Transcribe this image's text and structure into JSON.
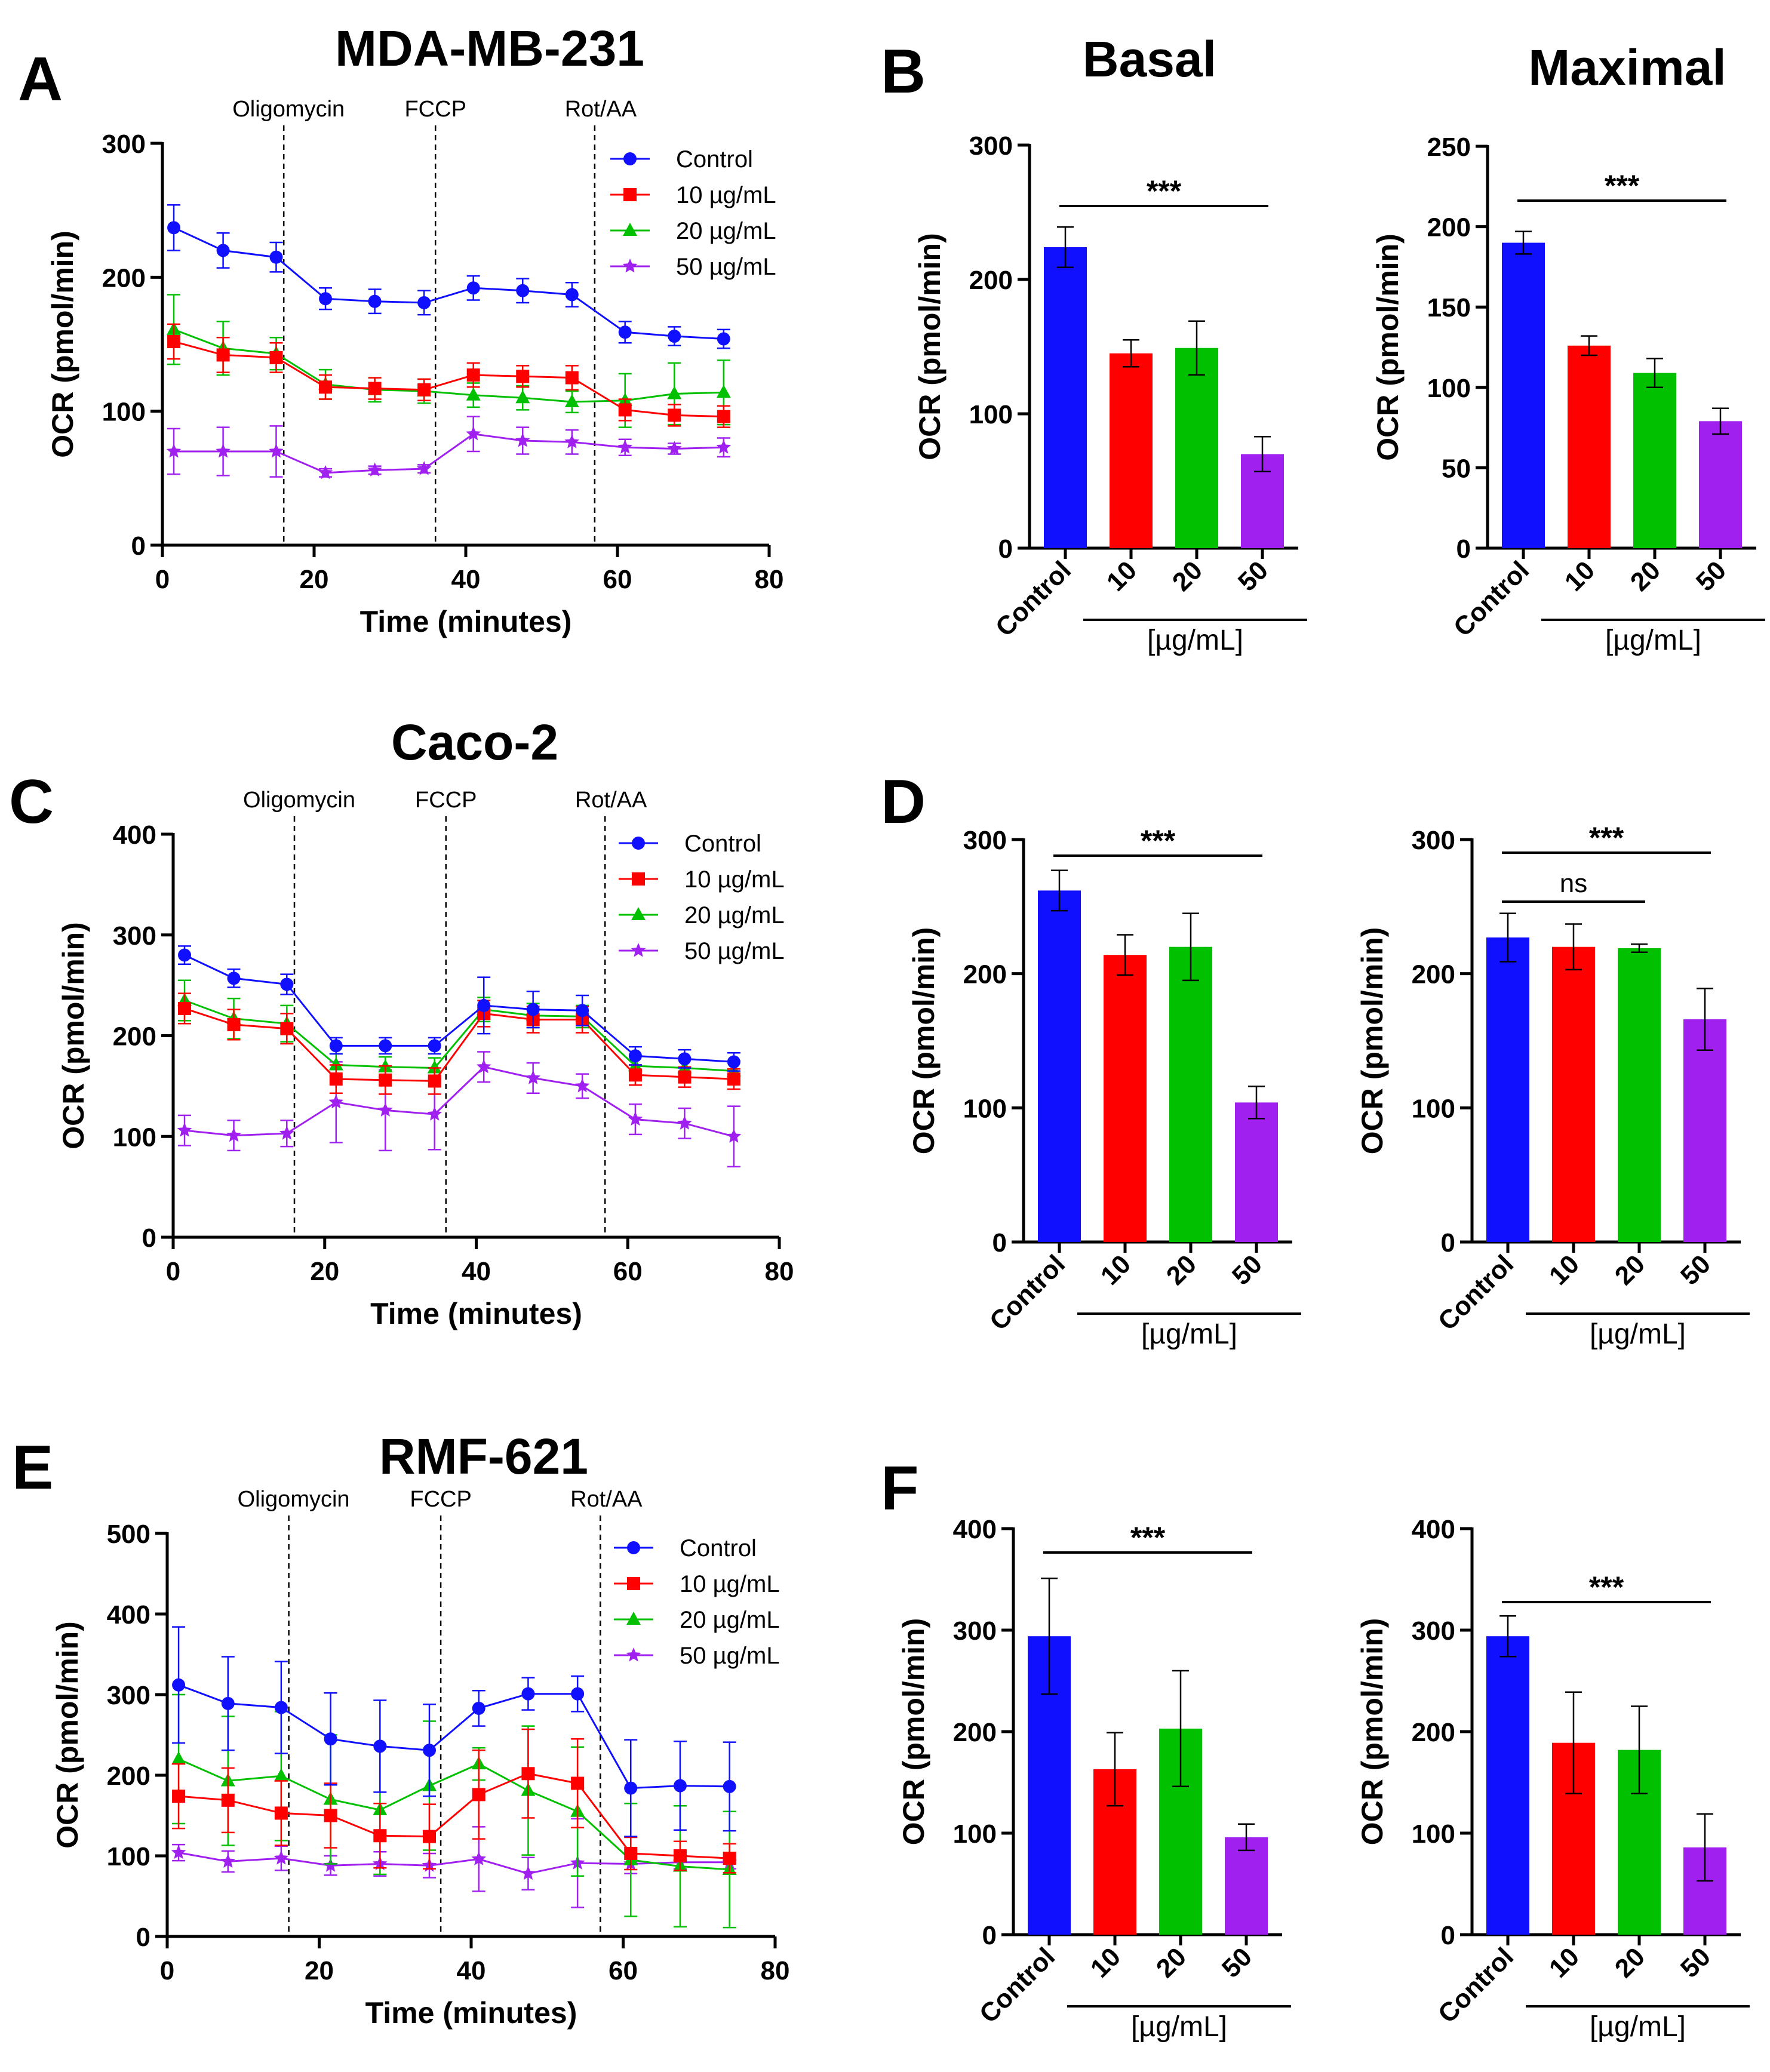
{
  "panel_labels": {
    "A": "A",
    "B": "B",
    "C": "C",
    "D": "D",
    "E": "E",
    "F": "F"
  },
  "titles": {
    "MDA": "MDA-MB-231",
    "Caco": "Caco-2",
    "RMF": "RMF-621",
    "basal": "Basal",
    "maximal": "Maximal"
  },
  "injections": [
    "Oligomycin",
    "FCCP",
    "Rot/AA"
  ],
  "legend": [
    "Control",
    "10 µg/mL",
    "20 µg/mL",
    "50 µg/mL"
  ],
  "colors": {
    "control": "#1010ff",
    "c10": "#ff0000",
    "c20": "#00c000",
    "c50": "#a020f0"
  },
  "axis_text": {
    "ocr": "OCR (pmol/min)",
    "time": "Time (minutes)",
    "unit": "[µg/mL]",
    "control": "Control",
    "d10": "10",
    "d20": "20",
    "d50": "50",
    "stars": "***",
    "ns": "ns"
  },
  "chart_data": [
    {
      "id": "A",
      "type": "line",
      "title": "MDA-MB-231",
      "xlabel": "Time (minutes)",
      "ylabel": "OCR (pmol/min)",
      "xlim": [
        0,
        80
      ],
      "ylim": [
        0,
        300
      ],
      "xticks": [
        0,
        20,
        40,
        60,
        80
      ],
      "yticks": [
        0,
        100,
        200,
        300
      ],
      "injections_at": [
        16,
        36,
        57
      ],
      "x": [
        1.5,
        8,
        15,
        21.5,
        28,
        34.5,
        41,
        47.5,
        54,
        61,
        67.5,
        74
      ],
      "series": [
        {
          "name": "Control",
          "values": [
            237,
            220,
            215,
            184,
            182,
            181,
            192,
            190,
            187,
            159,
            156,
            154
          ],
          "err": [
            17,
            13,
            11,
            8,
            9,
            9,
            9,
            9,
            9,
            8,
            7,
            7
          ]
        },
        {
          "name": "10 µg/mL",
          "values": [
            152,
            142,
            140,
            118,
            117,
            116,
            127,
            126,
            125,
            101,
            97,
            96
          ],
          "err": [
            13,
            13,
            11,
            9,
            8,
            8,
            9,
            8,
            9,
            8,
            8,
            8
          ]
        },
        {
          "name": "20 µg/mL",
          "values": [
            161,
            147,
            143,
            120,
            116,
            115,
            112,
            110,
            107,
            108,
            113,
            114
          ],
          "err": [
            26,
            20,
            12,
            11,
            9,
            9,
            9,
            9,
            8,
            20,
            23,
            24
          ]
        },
        {
          "name": "50 µg/mL",
          "values": [
            70,
            70,
            70,
            54,
            56,
            57,
            83,
            78,
            77,
            73,
            72,
            73
          ],
          "err": [
            17,
            18,
            19,
            3,
            3,
            3,
            13,
            10,
            9,
            6,
            4,
            7
          ]
        }
      ]
    },
    {
      "id": "B-basal",
      "type": "bar",
      "title": "Basal",
      "ylabel": "OCR (pmol/min)",
      "ylim": [
        0,
        300
      ],
      "yticks": [
        0,
        100,
        200,
        300
      ],
      "categories": [
        "Control",
        "10",
        "20",
        "50"
      ],
      "values": [
        224,
        145,
        149,
        70
      ],
      "err": [
        15,
        10,
        20,
        13
      ],
      "significance": [
        {
          "from": 0,
          "to": 3,
          "label": "***"
        }
      ]
    },
    {
      "id": "B-maximal",
      "type": "bar",
      "title": "Maximal",
      "ylabel": "OCR (pmol/min)",
      "ylim": [
        0,
        250
      ],
      "yticks": [
        0,
        50,
        100,
        150,
        200,
        250
      ],
      "categories": [
        "Control",
        "10",
        "20",
        "50"
      ],
      "values": [
        190,
        126,
        109,
        79
      ],
      "err": [
        7,
        6,
        9,
        8
      ],
      "significance": [
        {
          "from": 0,
          "to": 3,
          "label": "***"
        }
      ]
    },
    {
      "id": "C",
      "type": "line",
      "title": "Caco-2",
      "xlabel": "Time (minutes)",
      "ylabel": "OCR (pmol/min)",
      "xlim": [
        0,
        80
      ],
      "ylim": [
        0,
        400
      ],
      "xticks": [
        0,
        20,
        40,
        60,
        80
      ],
      "yticks": [
        0,
        100,
        200,
        300,
        400
      ],
      "injections_at": [
        16,
        36,
        57
      ],
      "x": [
        1.5,
        8,
        15,
        21.5,
        28,
        34.5,
        41,
        47.5,
        54,
        61,
        67.5,
        74
      ],
      "series": [
        {
          "name": "Control",
          "values": [
            280,
            257,
            251,
            190,
            190,
            190,
            230,
            226,
            225,
            180,
            177,
            174
          ],
          "err": [
            9,
            9,
            10,
            8,
            8,
            8,
            28,
            18,
            15,
            9,
            9,
            9
          ]
        },
        {
          "name": "10 µg/mL",
          "values": [
            227,
            211,
            207,
            157,
            156,
            155,
            222,
            216,
            216,
            161,
            159,
            157
          ],
          "err": [
            15,
            15,
            15,
            14,
            14,
            13,
            13,
            13,
            13,
            10,
            10,
            10
          ]
        },
        {
          "name": "20 µg/mL",
          "values": [
            235,
            217,
            212,
            171,
            169,
            168,
            226,
            220,
            219,
            170,
            168,
            165
          ],
          "err": [
            20,
            20,
            18,
            11,
            10,
            10,
            12,
            12,
            11,
            10,
            10,
            10
          ]
        },
        {
          "name": "50 µg/mL",
          "values": [
            106,
            101,
            103,
            134,
            126,
            122,
            169,
            158,
            150,
            117,
            113,
            100
          ],
          "err": [
            15,
            15,
            13,
            40,
            40,
            35,
            15,
            15,
            12,
            15,
            15,
            30
          ]
        }
      ]
    },
    {
      "id": "D-basal",
      "type": "bar",
      "ylabel": "OCR (pmol/min)",
      "ylim": [
        0,
        300
      ],
      "yticks": [
        0,
        100,
        200,
        300
      ],
      "categories": [
        "Control",
        "10",
        "20",
        "50"
      ],
      "values": [
        262,
        214,
        220,
        104
      ],
      "err": [
        15,
        15,
        25,
        12
      ],
      "significance": [
        {
          "from": 0,
          "to": 3,
          "label": "***"
        }
      ]
    },
    {
      "id": "D-maximal",
      "type": "bar",
      "ylabel": "OCR (pmol/min)",
      "ylim": [
        0,
        300
      ],
      "yticks": [
        0,
        100,
        200,
        300
      ],
      "categories": [
        "Control",
        "10",
        "20",
        "50"
      ],
      "values": [
        227,
        220,
        219,
        166
      ],
      "err": [
        18,
        17,
        3,
        23
      ],
      "significance": [
        {
          "from": 0,
          "to": 3,
          "label": "***"
        },
        {
          "from": 0,
          "to": 2,
          "label": "ns"
        }
      ]
    },
    {
      "id": "E",
      "type": "line",
      "title": "RMF-621",
      "xlabel": "Time (minutes)",
      "ylabel": "OCR (pmol/min)",
      "xlim": [
        0,
        80
      ],
      "ylim": [
        0,
        500
      ],
      "xticks": [
        0,
        20,
        40,
        60,
        80
      ],
      "yticks": [
        0,
        100,
        200,
        300,
        400,
        500
      ],
      "injections_at": [
        16,
        36,
        57
      ],
      "x": [
        1.5,
        8,
        15,
        21.5,
        28,
        34.5,
        41,
        47.5,
        54,
        61,
        67.5,
        74
      ],
      "series": [
        {
          "name": "Control",
          "values": [
            312,
            289,
            284,
            245,
            236,
            231,
            283,
            301,
            301,
            184,
            187,
            186
          ],
          "err": [
            72,
            58,
            57,
            57,
            57,
            57,
            22,
            20,
            22,
            60,
            55,
            55
          ]
        },
        {
          "name": "10 µg/mL",
          "values": [
            174,
            169,
            153,
            150,
            125,
            124,
            176,
            202,
            190,
            103,
            100,
            97
          ],
          "err": [
            40,
            40,
            40,
            40,
            40,
            40,
            55,
            55,
            55,
            20,
            18,
            18
          ]
        },
        {
          "name": "20 µg/mL",
          "values": [
            220,
            193,
            199,
            170,
            157,
            187,
            214,
            181,
            155,
            95,
            87,
            83
          ],
          "err": [
            80,
            80,
            80,
            80,
            80,
            80,
            20,
            80,
            80,
            70,
            75,
            72
          ]
        },
        {
          "name": "50 µg/mL",
          "values": [
            104,
            93,
            97,
            88,
            90,
            88,
            96,
            78,
            91,
            90,
            92,
            92
          ],
          "err": [
            10,
            13,
            15,
            12,
            15,
            15,
            40,
            20,
            55,
            12,
            8,
            8
          ]
        }
      ]
    },
    {
      "id": "F-basal",
      "type": "bar",
      "ylabel": "OCR (pmol/min)",
      "ylim": [
        0,
        400
      ],
      "yticks": [
        0,
        100,
        200,
        300,
        400
      ],
      "categories": [
        "Control",
        "10",
        "20",
        "50"
      ],
      "values": [
        294,
        163,
        203,
        96
      ],
      "err": [
        57,
        36,
        57,
        13
      ],
      "significance": [
        {
          "from": 0,
          "to": 3,
          "label": "***"
        }
      ]
    },
    {
      "id": "F-maximal",
      "type": "bar",
      "ylabel": "OCR (pmol/min)",
      "ylim": [
        0,
        400
      ],
      "yticks": [
        0,
        100,
        200,
        300,
        400
      ],
      "categories": [
        "Control",
        "10",
        "20",
        "50"
      ],
      "values": [
        294,
        189,
        182,
        86
      ],
      "err": [
        20,
        50,
        43,
        33
      ],
      "significance": [
        {
          "from": 0,
          "to": 3,
          "label": "***"
        }
      ]
    }
  ]
}
